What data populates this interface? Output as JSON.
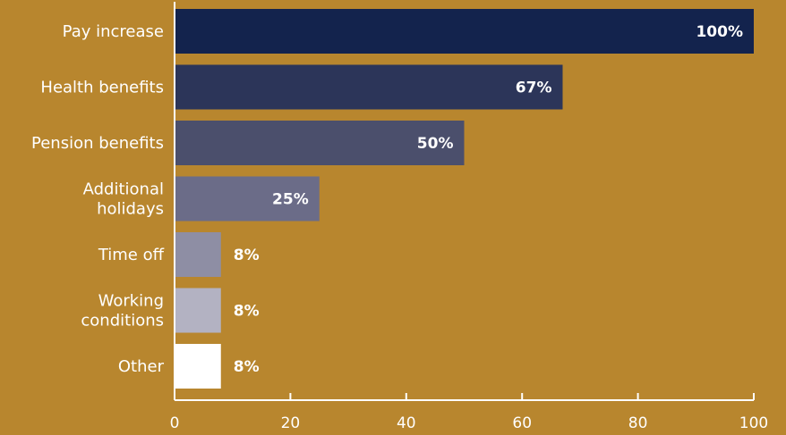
{
  "chart_data": {
    "type": "bar",
    "orientation": "horizontal",
    "categories": [
      [
        "Pay increase"
      ],
      [
        "Health benefits"
      ],
      [
        "Pension benefits"
      ],
      [
        "Additional",
        "holidays"
      ],
      [
        "Time off"
      ],
      [
        "Working",
        "conditions"
      ],
      [
        "Other"
      ]
    ],
    "values": [
      100,
      67,
      50,
      25,
      8,
      8,
      8
    ],
    "value_labels": [
      "100%",
      "67%",
      "50%",
      "25%",
      "8%",
      "8%",
      "8%"
    ],
    "bar_colors": [
      "#13234d",
      "#2c3559",
      "#4b4f6c",
      "#6b6c88",
      "#8e8ea4",
      "#b3b2c2",
      "#ffffff"
    ],
    "xlim": [
      0,
      100
    ],
    "xticks": [
      0,
      20,
      40,
      60,
      80,
      100
    ],
    "grid": false,
    "title": "",
    "xlabel": "",
    "ylabel": "",
    "background": "#b8862e",
    "text_color": "#ffffff"
  }
}
